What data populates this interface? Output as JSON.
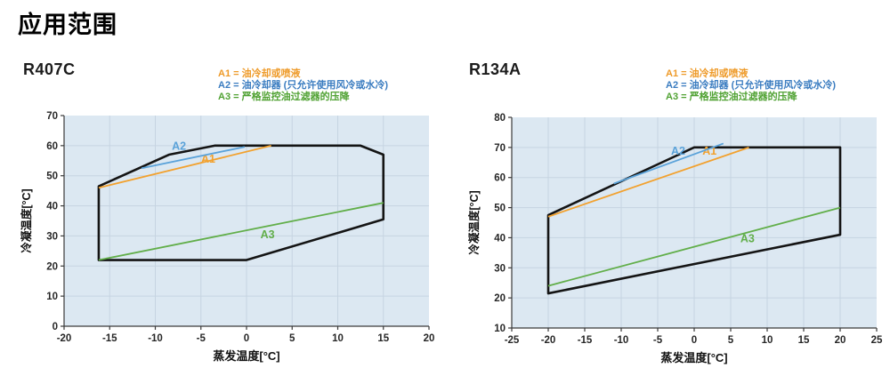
{
  "page": {
    "title": "应用范围"
  },
  "legend": {
    "items": [
      {
        "id": "A1",
        "label": "A1 = 油冷却或喷液",
        "color": "#EE9A28"
      },
      {
        "id": "A2",
        "label": "A2 = 油冷却器 (只允许使用风冷或水冷)",
        "color": "#3A7CC0"
      },
      {
        "id": "A3",
        "label": "A3 = 严格监控油过滤器的压降",
        "color": "#50A233"
      }
    ]
  },
  "chart_data": [
    {
      "type": "line",
      "title": "R407C",
      "xlabel": "蒸发温度[°C]",
      "ylabel": "冷凝温度[°C]",
      "xlim": [
        -20,
        20
      ],
      "xstep": 5,
      "ylim": [
        0,
        70
      ],
      "ystep": 10,
      "grid": true,
      "plot_bg": "#dce8f2",
      "grid_color": "#c6d4e1",
      "envelope": {
        "name": "application-envelope",
        "color": "#141414",
        "points": [
          [
            -16.2,
            46.5
          ],
          [
            -8.5,
            57
          ],
          [
            -3.5,
            60
          ],
          [
            12.5,
            60
          ],
          [
            15,
            57
          ],
          [
            15,
            35.5
          ],
          [
            0,
            22
          ],
          [
            -16.2,
            22
          ]
        ]
      },
      "series": [
        {
          "name": "A1",
          "color": "#F2A12E",
          "points": [
            [
              -16.2,
              46
            ],
            [
              2.7,
              60
            ]
          ],
          "label": "A1",
          "label_pos": [
            -4.2,
            54.3
          ]
        },
        {
          "name": "A2",
          "color": "#5AA2D9",
          "points": [
            [
              -11.5,
              52.5
            ],
            [
              -0.2,
              59.6
            ]
          ],
          "label": "A2",
          "label_pos": [
            -7.4,
            58.6
          ]
        },
        {
          "name": "A3",
          "color": "#61AE49",
          "points": [
            [
              -16.2,
              22
            ],
            [
              15,
              41
            ]
          ],
          "label": "A3",
          "label_pos": [
            2.3,
            29.3
          ]
        }
      ]
    },
    {
      "type": "line",
      "title": "R134A",
      "xlabel": "蒸发温度[°C]",
      "ylabel": "冷凝温度[°C]",
      "xlim": [
        -25,
        25
      ],
      "xstep": 5,
      "ylim": [
        10,
        80
      ],
      "ystep": 10,
      "grid": true,
      "plot_bg": "#dce8f2",
      "grid_color": "#c6d4e1",
      "envelope": {
        "name": "application-envelope",
        "color": "#141414",
        "points": [
          [
            -20,
            47.5
          ],
          [
            0,
            70
          ],
          [
            20,
            70
          ],
          [
            20,
            41
          ],
          [
            -20,
            21.5
          ]
        ]
      },
      "series": [
        {
          "name": "A1",
          "color": "#F2A12E",
          "points": [
            [
              -20,
              47
            ],
            [
              7.5,
              70
            ]
          ],
          "label": "A1",
          "label_pos": [
            2.1,
            67.6
          ]
        },
        {
          "name": "A2",
          "color": "#5AA2D9",
          "points": [
            [
              -11,
              58
            ],
            [
              4,
              71.3
            ]
          ],
          "label": "A2",
          "label_pos": [
            -2.2,
            67.6
          ]
        },
        {
          "name": "A3",
          "color": "#61AE49",
          "points": [
            [
              -20,
              24
            ],
            [
              20,
              50
            ]
          ],
          "label": "A3",
          "label_pos": [
            7.3,
            38.5
          ]
        }
      ]
    }
  ]
}
